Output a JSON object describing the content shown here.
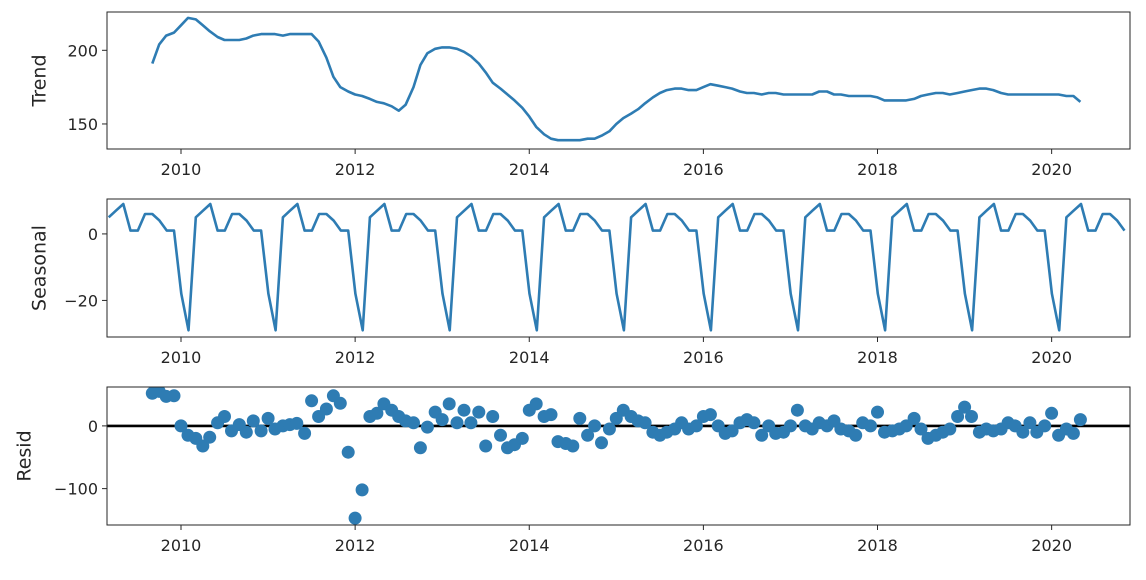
{
  "chart_data": [
    {
      "type": "line",
      "ylabel": "Trend",
      "xlim": [
        2009.15,
        2020.9
      ],
      "ylim": [
        133,
        226
      ],
      "xticks": [
        2010,
        2012,
        2014,
        2016,
        2018,
        2020
      ],
      "yticks": [
        150,
        200
      ],
      "color": "#2e7cb3",
      "x": [
        2009.67,
        2009.75,
        2009.83,
        2009.92,
        2010.0,
        2010.08,
        2010.17,
        2010.25,
        2010.33,
        2010.42,
        2010.5,
        2010.58,
        2010.67,
        2010.75,
        2010.83,
        2010.92,
        2011.0,
        2011.08,
        2011.17,
        2011.25,
        2011.33,
        2011.42,
        2011.5,
        2011.58,
        2011.67,
        2011.75,
        2011.83,
        2011.92,
        2012.0,
        2012.08,
        2012.17,
        2012.25,
        2012.33,
        2012.42,
        2012.5,
        2012.58,
        2012.67,
        2012.75,
        2012.83,
        2012.92,
        2013.0,
        2013.08,
        2013.17,
        2013.25,
        2013.33,
        2013.42,
        2013.5,
        2013.58,
        2013.67,
        2013.75,
        2013.83,
        2013.92,
        2014.0,
        2014.08,
        2014.17,
        2014.25,
        2014.33,
        2014.42,
        2014.5,
        2014.58,
        2014.67,
        2014.75,
        2014.83,
        2014.92,
        2015.0,
        2015.08,
        2015.17,
        2015.25,
        2015.33,
        2015.42,
        2015.5,
        2015.58,
        2015.67,
        2015.75,
        2015.83,
        2015.92,
        2016.0,
        2016.08,
        2016.17,
        2016.25,
        2016.33,
        2016.42,
        2016.5,
        2016.58,
        2016.67,
        2016.75,
        2016.83,
        2016.92,
        2017.0,
        2017.08,
        2017.17,
        2017.25,
        2017.33,
        2017.42,
        2017.5,
        2017.58,
        2017.67,
        2017.75,
        2017.83,
        2017.92,
        2018.0,
        2018.08,
        2018.17,
        2018.25,
        2018.33,
        2018.42,
        2018.5,
        2018.58,
        2018.67,
        2018.75,
        2018.83,
        2018.92,
        2019.0,
        2019.08,
        2019.17,
        2019.25,
        2019.33,
        2019.42,
        2019.5,
        2019.58,
        2019.67,
        2019.75,
        2019.83,
        2019.92,
        2020.0,
        2020.08,
        2020.17,
        2020.25,
        2020.33
      ],
      "y": [
        191,
        204,
        210,
        212,
        217,
        222,
        221,
        217,
        213,
        209,
        207,
        207,
        207,
        208,
        210,
        211,
        211,
        211,
        210,
        211,
        211,
        211,
        211,
        206,
        195,
        182,
        175,
        172,
        170,
        169,
        167,
        165,
        164,
        162,
        159,
        163,
        175,
        190,
        198,
        201,
        202,
        202,
        201,
        199,
        196,
        191,
        185,
        178,
        174,
        170,
        166,
        161,
        155,
        148,
        143,
        140,
        139,
        139,
        139,
        139,
        140,
        140,
        142,
        145,
        150,
        154,
        157,
        160,
        164,
        168,
        171,
        173,
        174,
        174,
        173,
        173,
        175,
        177,
        176,
        175,
        174,
        172,
        171,
        171,
        170,
        171,
        171,
        170,
        170,
        170,
        170,
        170,
        172,
        172,
        170,
        170,
        169,
        169,
        169,
        169,
        168,
        166,
        166,
        166,
        166,
        167,
        169,
        170,
        171,
        171,
        170,
        171,
        172,
        173,
        174,
        174,
        173,
        171,
        170,
        170,
        170,
        170,
        170,
        170,
        170,
        170,
        169,
        169,
        165
      ]
    },
    {
      "type": "line",
      "ylabel": "Seasonal",
      "xlim": [
        2009.15,
        2020.9
      ],
      "ylim": [
        -31,
        10.5
      ],
      "xticks": [
        2010,
        2012,
        2014,
        2016,
        2018,
        2020
      ],
      "yticks": [
        -20,
        0
      ],
      "color": "#2e7cb3",
      "x0": 2009.17,
      "step": 0.0833333,
      "pattern": [
        5,
        7,
        9,
        1,
        1,
        6,
        6,
        4,
        1,
        1,
        -18,
        -29
      ],
      "count": 141
    },
    {
      "type": "scatter",
      "ylabel": "Resid",
      "xlim": [
        2009.15,
        2020.9
      ],
      "ylim": [
        -158,
        62
      ],
      "xticks": [
        2010,
        2012,
        2014,
        2016,
        2018,
        2020
      ],
      "yticks": [
        -100,
        0
      ],
      "baseline": 0,
      "color": "#2e7cb3",
      "x": [
        2009.67,
        2009.75,
        2009.83,
        2009.92,
        2010.0,
        2010.08,
        2010.17,
        2010.25,
        2010.33,
        2010.42,
        2010.5,
        2010.58,
        2010.67,
        2010.75,
        2010.83,
        2010.92,
        2011.0,
        2011.08,
        2011.17,
        2011.25,
        2011.33,
        2011.42,
        2011.5,
        2011.58,
        2011.67,
        2011.75,
        2011.83,
        2011.92,
        2012.0,
        2012.08,
        2012.17,
        2012.25,
        2012.33,
        2012.42,
        2012.5,
        2012.58,
        2012.67,
        2012.75,
        2012.83,
        2012.92,
        2013.0,
        2013.08,
        2013.17,
        2013.25,
        2013.33,
        2013.42,
        2013.5,
        2013.58,
        2013.67,
        2013.75,
        2013.83,
        2013.92,
        2014.0,
        2014.08,
        2014.17,
        2014.25,
        2014.33,
        2014.42,
        2014.5,
        2014.58,
        2014.67,
        2014.75,
        2014.83,
        2014.92,
        2015.0,
        2015.08,
        2015.17,
        2015.25,
        2015.33,
        2015.42,
        2015.5,
        2015.58,
        2015.67,
        2015.75,
        2015.83,
        2015.92,
        2016.0,
        2016.08,
        2016.17,
        2016.25,
        2016.33,
        2016.42,
        2016.5,
        2016.58,
        2016.67,
        2016.75,
        2016.83,
        2016.92,
        2017.0,
        2017.08,
        2017.17,
        2017.25,
        2017.33,
        2017.42,
        2017.5,
        2017.58,
        2017.67,
        2017.75,
        2017.83,
        2017.92,
        2018.0,
        2018.08,
        2018.17,
        2018.25,
        2018.33,
        2018.42,
        2018.5,
        2018.58,
        2018.67,
        2018.75,
        2018.83,
        2018.92,
        2019.0,
        2019.08,
        2019.17,
        2019.25,
        2019.33,
        2019.42,
        2019.5,
        2019.58,
        2019.67,
        2019.75,
        2019.83,
        2019.92,
        2020.0,
        2020.08,
        2020.17,
        2020.25,
        2020.33
      ],
      "y": [
        52,
        55,
        47,
        48,
        0,
        -15,
        -20,
        -32,
        -18,
        5,
        15,
        -8,
        2,
        -10,
        8,
        -8,
        12,
        -5,
        0,
        2,
        4,
        -12,
        40,
        15,
        27,
        48,
        36,
        -42,
        -147,
        -102,
        15,
        20,
        35,
        25,
        15,
        8,
        5,
        -35,
        -2,
        22,
        10,
        35,
        5,
        25,
        5,
        22,
        -32,
        15,
        -15,
        -35,
        -30,
        -20,
        25,
        35,
        15,
        18,
        -25,
        -28,
        -32,
        12,
        -15,
        0,
        -27,
        -5,
        12,
        25,
        15,
        8,
        5,
        -10,
        -15,
        -10,
        -5,
        5,
        -5,
        0,
        15,
        18,
        0,
        -12,
        -8,
        5,
        10,
        5,
        -15,
        0,
        -12,
        -10,
        0,
        25,
        0,
        -5,
        5,
        0,
        8,
        -5,
        -8,
        -15,
        5,
        0,
        22,
        -10,
        -8,
        -5,
        0,
        12,
        -5,
        -20,
        -15,
        -10,
        -5,
        15,
        30,
        15,
        -10,
        -5,
        -8,
        -5,
        5,
        0,
        -10,
        5,
        -10,
        0,
        20,
        -15,
        -5,
        -12,
        10
      ]
    }
  ]
}
